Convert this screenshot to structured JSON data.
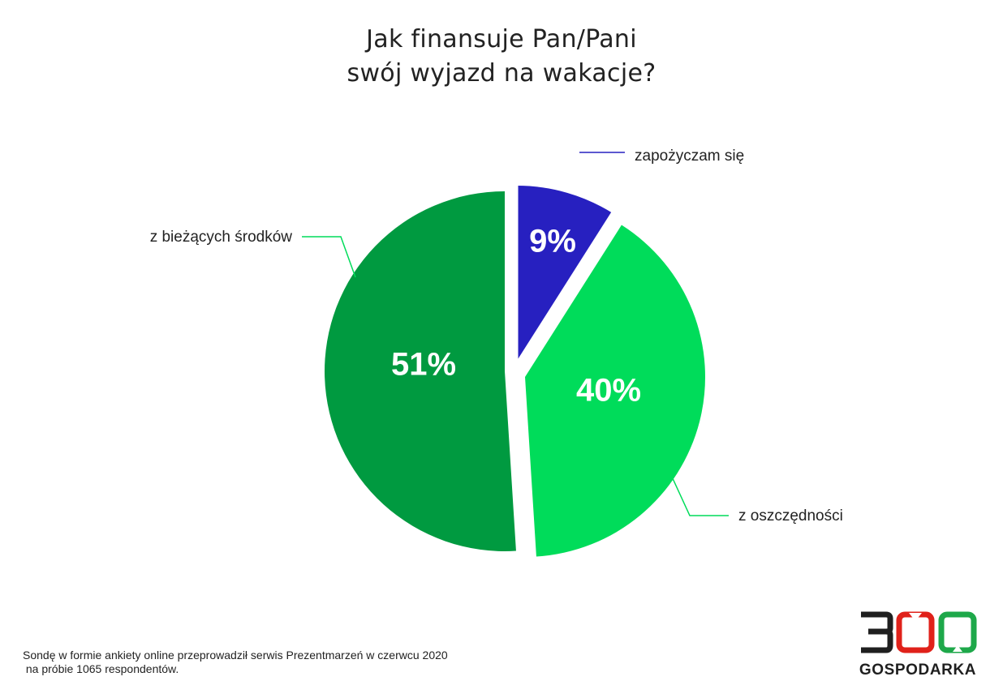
{
  "title_lines": [
    "Jak finansuje Pan/Pani",
    "swój wyjazd na wakacje?"
  ],
  "chart_data": {
    "type": "pie",
    "title": "Jak finansuje Pan/Pani swój wyjazd na wakacje?",
    "unit": "%",
    "exploded": true,
    "legend": "none",
    "slices": [
      {
        "label": "zapożyczam się",
        "value": 9,
        "value_label": "9%",
        "color": "#2720c0",
        "leader_color": "#2720c0"
      },
      {
        "label": "z oszczędności",
        "value": 40,
        "value_label": "40%",
        "color": "#00dc5a",
        "leader_color": "#00dc5a"
      },
      {
        "label": "z bieżących środków",
        "value": 51,
        "value_label": "51%",
        "color": "#009a40",
        "leader_color": "#00dc5a"
      }
    ]
  },
  "footnote": {
    "line1": "Sondę w formie ankiety online przeprowadził serwis Prezentmarzeń w czerwcu 2020",
    "line2": " na próbie 1065 respondentów."
  },
  "logo": {
    "number_text": "300",
    "brand_text": "GOSPODARKA",
    "colors": {
      "dark": "#1f1f1f",
      "red": "#e0211a",
      "green": "#1ea84a"
    }
  }
}
